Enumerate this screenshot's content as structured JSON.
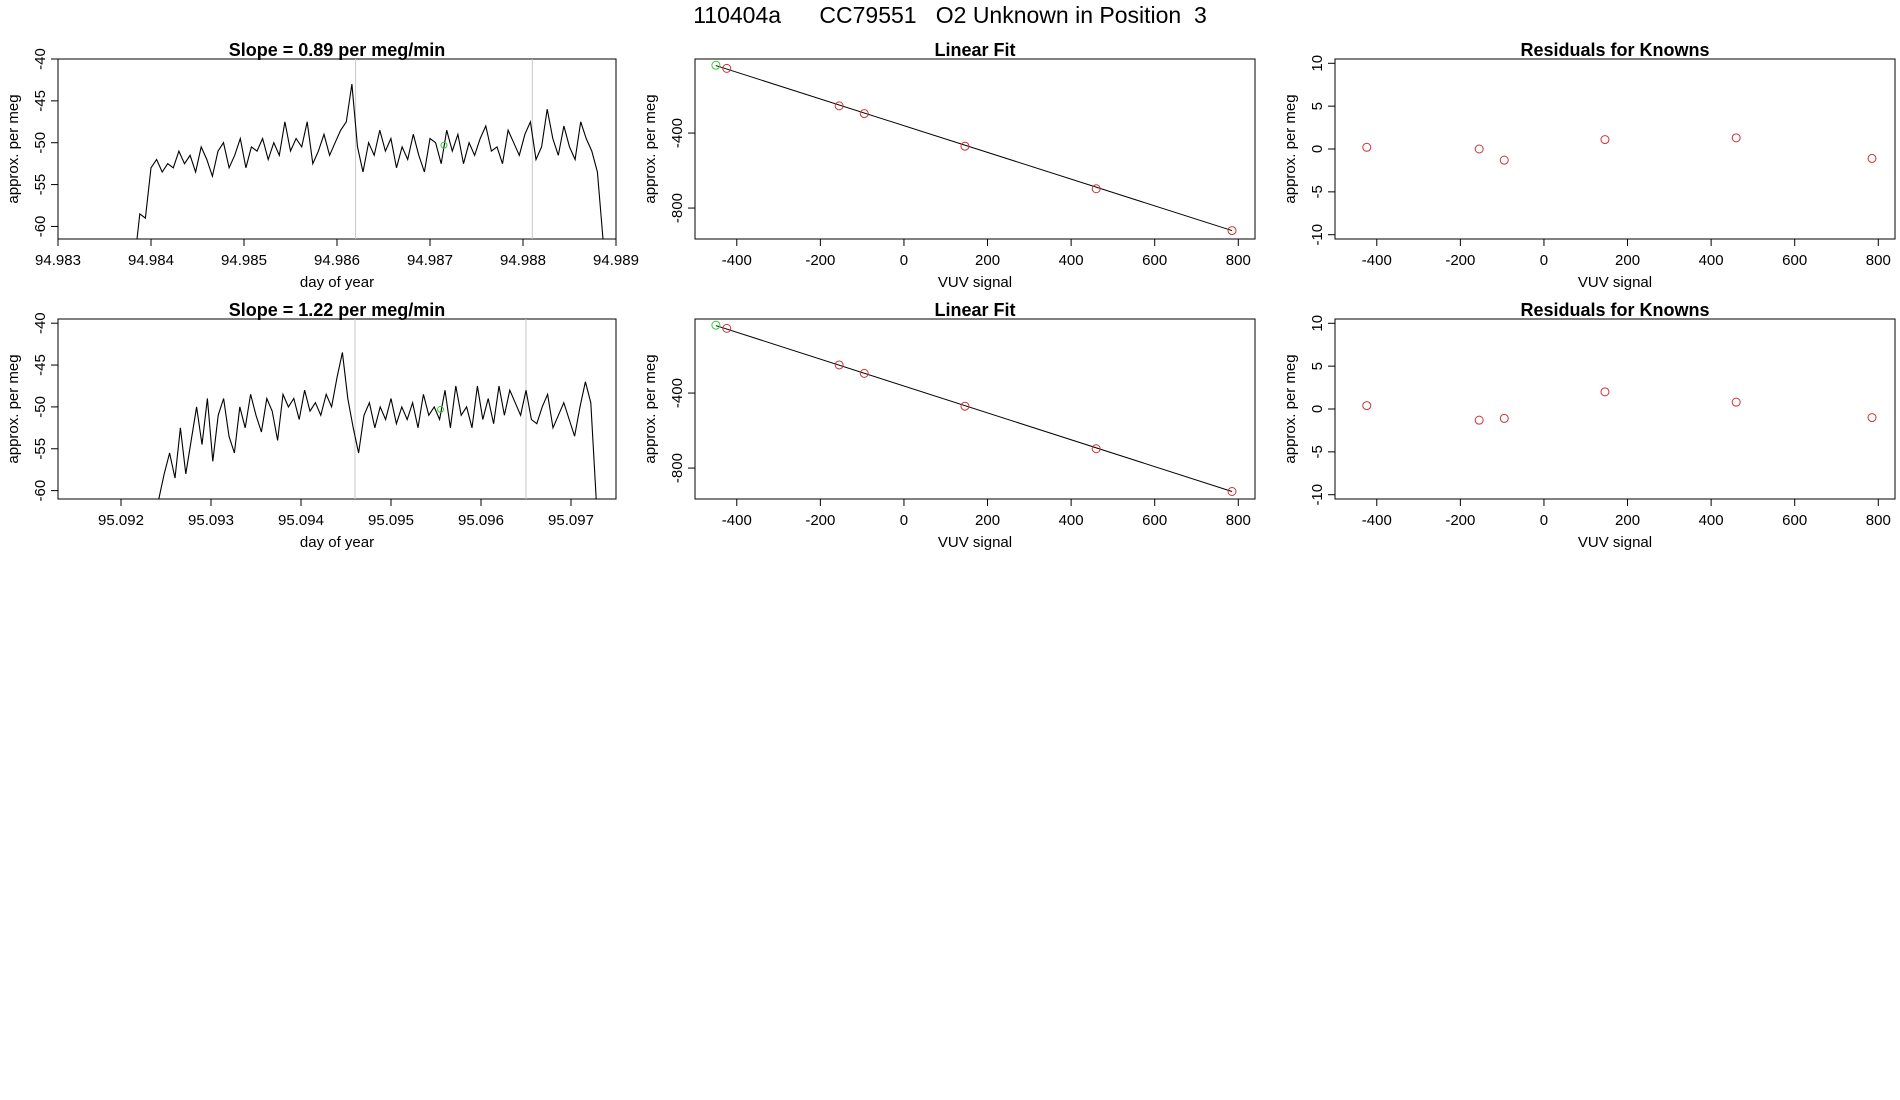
{
  "page_title": "110404a      CC79551   O2 Unknown in Position  3",
  "colors": {
    "line": "#000000",
    "known_point": "#cc3333",
    "unknown_point": "#33cc33",
    "guide": "#c8c8c8"
  },
  "chart_data": [
    {
      "id": "ts1",
      "type": "line",
      "title": "Slope =  0.89  per meg/min",
      "xlabel": "day of year",
      "ylabel": "approx. per meg",
      "xlim": [
        94.983,
        94.989
      ],
      "ylim": [
        -61.5,
        -40
      ],
      "xticks": [
        "94.983",
        "94.984",
        "94.985",
        "94.986",
        "94.987",
        "94.988",
        "94.989"
      ],
      "yticks": [
        "-40",
        "-45",
        "-50",
        "-55",
        "-60"
      ],
      "vlines": [
        94.9862,
        94.9881
      ],
      "highlight_point": {
        "x": 94.98715,
        "y": -50.3
      },
      "x": [
        94.98385,
        94.98388,
        94.98394,
        94.984,
        94.98406,
        94.98412,
        94.98418,
        94.98424,
        94.9843,
        94.98436,
        94.98442,
        94.98448,
        94.98454,
        94.9846,
        94.98466,
        94.98472,
        94.98478,
        94.98484,
        94.9849,
        94.98496,
        94.98502,
        94.98508,
        94.98514,
        94.9852,
        94.98526,
        94.98532,
        94.98538,
        94.98544,
        94.9855,
        94.98556,
        94.98562,
        94.98568,
        94.98574,
        94.9858,
        94.98586,
        94.98592,
        94.98598,
        94.98604,
        94.9861,
        94.98616,
        94.98622,
        94.98628,
        94.98634,
        94.9864,
        94.98646,
        94.98652,
        94.98658,
        94.98664,
        94.9867,
        94.98676,
        94.98682,
        94.98688,
        94.98694,
        94.987,
        94.98706,
        94.98712,
        94.98718,
        94.98724,
        94.9873,
        94.98736,
        94.98742,
        94.98748,
        94.98754,
        94.9876,
        94.98766,
        94.98772,
        94.98778,
        94.98784,
        94.9879,
        94.98796,
        94.98802,
        94.98808,
        94.98814,
        94.9882,
        94.98826,
        94.98832,
        94.98838,
        94.98844,
        94.9885,
        94.98856,
        94.98862,
        94.98868,
        94.98874,
        94.9888,
        94.98886
      ],
      "y": [
        -61.5,
        -58.5,
        -59.0,
        -53.0,
        -52.0,
        -53.5,
        -52.5,
        -53.0,
        -51.0,
        -52.5,
        -51.5,
        -53.5,
        -50.5,
        -52.0,
        -54.0,
        -51.0,
        -50.0,
        -53.0,
        -51.5,
        -49.5,
        -53.0,
        -50.5,
        -51.0,
        -49.5,
        -52.0,
        -50.0,
        -51.5,
        -47.5,
        -51.0,
        -49.5,
        -50.5,
        -47.5,
        -52.5,
        -51.0,
        -49.0,
        -51.5,
        -50.0,
        -48.5,
        -47.5,
        -43.0,
        -50.5,
        -53.5,
        -50.0,
        -51.5,
        -48.5,
        -51.0,
        -49.5,
        -53.0,
        -50.5,
        -52.0,
        -49.0,
        -51.5,
        -53.5,
        -49.5,
        -50.0,
        -52.5,
        -48.5,
        -51.0,
        -49.0,
        -52.5,
        -50.0,
        -51.5,
        -49.5,
        -48.0,
        -51.0,
        -50.5,
        -52.5,
        -48.5,
        -50.0,
        -51.5,
        -49.0,
        -47.5,
        -52.0,
        -50.5,
        -46.0,
        -49.5,
        -51.5,
        -48.0,
        -50.5,
        -52.0,
        -47.5,
        -49.5,
        -51.0,
        -53.5,
        -61.5
      ]
    },
    {
      "id": "fit1",
      "type": "scatter",
      "title": "Linear Fit",
      "xlabel": "VUV signal",
      "ylabel": "approx. per meg",
      "xlim": [
        -500,
        840
      ],
      "ylim": [
        -965,
        -5
      ],
      "xticks": [
        -400,
        -200,
        0,
        200,
        400,
        600,
        800
      ],
      "yticks": [
        -400,
        -800
      ],
      "fit_line": {
        "x": [
          -450,
          785
        ],
        "y": [
          -40,
          -920
        ]
      },
      "points": [
        {
          "x": -450,
          "y": -38,
          "kind": "unknown"
        },
        {
          "x": -424,
          "y": -55,
          "kind": "known"
        },
        {
          "x": -155,
          "y": -255,
          "kind": "known"
        },
        {
          "x": -95,
          "y": -296,
          "kind": "known"
        },
        {
          "x": 146,
          "y": -470,
          "kind": "known"
        },
        {
          "x": 460,
          "y": -697,
          "kind": "known"
        },
        {
          "x": 785,
          "y": -920,
          "kind": "known"
        }
      ]
    },
    {
      "id": "res1",
      "type": "scatter",
      "title": "Residuals for Knowns",
      "xlabel": "VUV signal",
      "ylabel": "approx. per meg",
      "xlim": [
        -500,
        840
      ],
      "ylim": [
        -10.5,
        10.5
      ],
      "xticks": [
        -400,
        -200,
        0,
        200,
        400,
        600,
        800
      ],
      "yticks": [
        10,
        5,
        0,
        -5,
        -10
      ],
      "points": [
        {
          "x": -424,
          "y": 0.2,
          "kind": "known"
        },
        {
          "x": -155,
          "y": 0.0,
          "kind": "known"
        },
        {
          "x": -95,
          "y": -1.3,
          "kind": "known"
        },
        {
          "x": 146,
          "y": 1.1,
          "kind": "known"
        },
        {
          "x": 460,
          "y": 1.3,
          "kind": "known"
        },
        {
          "x": 785,
          "y": -1.1,
          "kind": "known"
        }
      ]
    },
    {
      "id": "ts2",
      "type": "line",
      "title": "Slope =  1.22  per meg/min",
      "xlabel": "day of year",
      "ylabel": "approx. per meg",
      "xlim": [
        95.0913,
        95.0975
      ],
      "ylim": [
        -61.0,
        -39.5
      ],
      "xticks": [
        "95.092",
        "95.093",
        "95.094",
        "95.095",
        "95.096",
        "95.097"
      ],
      "yticks": [
        "-40",
        "-45",
        "-50",
        "-55",
        "-60"
      ],
      "vlines": [
        95.0946,
        95.0965
      ],
      "highlight_point": {
        "x": 95.09555,
        "y": -50.3
      },
      "x": [
        95.09242,
        95.09248,
        95.09254,
        95.0926,
        95.09266,
        95.09272,
        95.09278,
        95.09284,
        95.0929,
        95.09296,
        95.09302,
        95.09308,
        95.09314,
        95.0932,
        95.09326,
        95.09332,
        95.09338,
        95.09344,
        95.0935,
        95.09356,
        95.09362,
        95.09368,
        95.09374,
        95.0938,
        95.09386,
        95.09392,
        95.09398,
        95.09404,
        95.0941,
        95.09416,
        95.09422,
        95.09428,
        95.09434,
        95.0944,
        95.09446,
        95.09452,
        95.09458,
        95.09464,
        95.0947,
        95.09476,
        95.09482,
        95.09488,
        95.09494,
        95.095,
        95.09506,
        95.09512,
        95.09518,
        95.09524,
        95.0953,
        95.09536,
        95.09542,
        95.09548,
        95.09554,
        95.0956,
        95.09566,
        95.09572,
        95.09578,
        95.09584,
        95.0959,
        95.09596,
        95.09602,
        95.09608,
        95.09614,
        95.0962,
        95.09626,
        95.09632,
        95.09638,
        95.09644,
        95.0965,
        95.09656,
        95.09662,
        95.09668,
        95.09674,
        95.0968,
        95.09686,
        95.09692,
        95.09698,
        95.09704,
        95.0971,
        95.09716,
        95.09722,
        95.09728
      ],
      "y": [
        -61.0,
        -58.0,
        -55.5,
        -58.5,
        -52.5,
        -58.0,
        -54.0,
        -50.0,
        -54.5,
        -49.0,
        -56.5,
        -51.0,
        -49.0,
        -53.5,
        -55.5,
        -50.0,
        -52.5,
        -48.5,
        -51.0,
        -53.0,
        -49.0,
        -50.5,
        -54.0,
        -48.5,
        -50.0,
        -49.0,
        -51.5,
        -48.0,
        -50.5,
        -49.5,
        -51.0,
        -48.5,
        -50.0,
        -46.5,
        -43.5,
        -49.0,
        -52.5,
        -55.5,
        -51.0,
        -49.5,
        -52.5,
        -50.0,
        -51.5,
        -49.0,
        -52.0,
        -50.0,
        -51.5,
        -49.5,
        -52.5,
        -48.5,
        -51.0,
        -50.0,
        -51.5,
        -48.0,
        -52.5,
        -47.5,
        -51.0,
        -50.0,
        -52.5,
        -47.5,
        -51.5,
        -49.0,
        -52.0,
        -47.5,
        -51.0,
        -48.0,
        -49.5,
        -51.0,
        -48.0,
        -51.5,
        -52.0,
        -50.0,
        -48.5,
        -52.5,
        -51.0,
        -49.5,
        -51.5,
        -53.5,
        -50.0,
        -47.0,
        -49.5,
        -61.0
      ]
    },
    {
      "id": "fit2",
      "type": "scatter",
      "title": "Linear Fit",
      "xlabel": "VUV signal",
      "ylabel": "approx. per meg",
      "xlim": [
        -500,
        840
      ],
      "ylim": [
        -965,
        -5
      ],
      "xticks": [
        -400,
        -200,
        0,
        200,
        400,
        600,
        800
      ],
      "yticks": [
        -400,
        -800
      ],
      "fit_line": {
        "x": [
          -450,
          785
        ],
        "y": [
          -40,
          -925
        ]
      },
      "points": [
        {
          "x": -450,
          "y": -38,
          "kind": "unknown"
        },
        {
          "x": -424,
          "y": -55,
          "kind": "known"
        },
        {
          "x": -155,
          "y": -250,
          "kind": "known"
        },
        {
          "x": -95,
          "y": -295,
          "kind": "known"
        },
        {
          "x": 146,
          "y": -470,
          "kind": "known"
        },
        {
          "x": 460,
          "y": -697,
          "kind": "known"
        },
        {
          "x": 785,
          "y": -925,
          "kind": "known"
        }
      ]
    },
    {
      "id": "res2",
      "type": "scatter",
      "title": "Residuals for Knowns",
      "xlabel": "VUV signal",
      "ylabel": "approx. per meg",
      "xlim": [
        -500,
        840
      ],
      "ylim": [
        -10.5,
        10.5
      ],
      "xticks": [
        -400,
        -200,
        0,
        200,
        400,
        600,
        800
      ],
      "yticks": [
        10,
        5,
        0,
        -5,
        -10
      ],
      "points": [
        {
          "x": -424,
          "y": 0.4,
          "kind": "known"
        },
        {
          "x": -155,
          "y": -1.3,
          "kind": "known"
        },
        {
          "x": -95,
          "y": -1.1,
          "kind": "known"
        },
        {
          "x": 146,
          "y": 2.0,
          "kind": "known"
        },
        {
          "x": 460,
          "y": 0.8,
          "kind": "known"
        },
        {
          "x": 785,
          "y": -1.0,
          "kind": "known"
        }
      ]
    }
  ]
}
